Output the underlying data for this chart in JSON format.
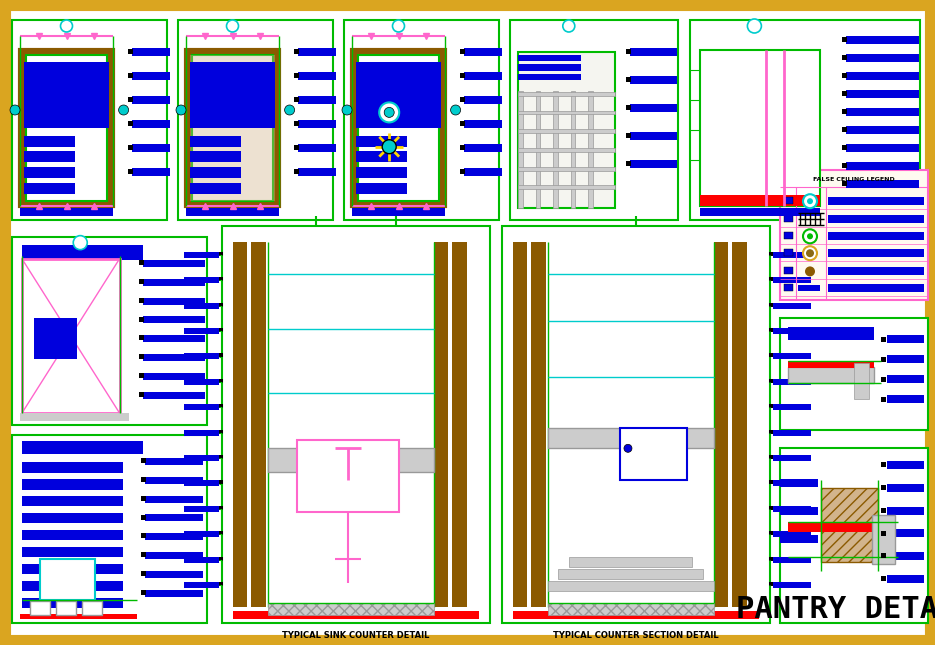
{
  "bg": "#FFFFFF",
  "border_color": "#DAA520",
  "blue": "#0000DD",
  "green": "#00BB00",
  "red": "#FF0000",
  "pink": "#FF66CC",
  "cyan": "#00CCCC",
  "brown": "#8B5A00",
  "gray": "#999999",
  "lgray": "#CCCCCC",
  "yellow": "#FFD700",
  "magenta": "#FF00FF",
  "black": "#000000",
  "white": "#FFFFFF",
  "title": "PANTRY DETAIL",
  "label_sink": "TYPICAL SINK COUNTER DETAIL",
  "label_counter": "TYPICAL COUNTER SECTION DETAIL",
  "label_legend": "FALSE CEILING LEGEND"
}
